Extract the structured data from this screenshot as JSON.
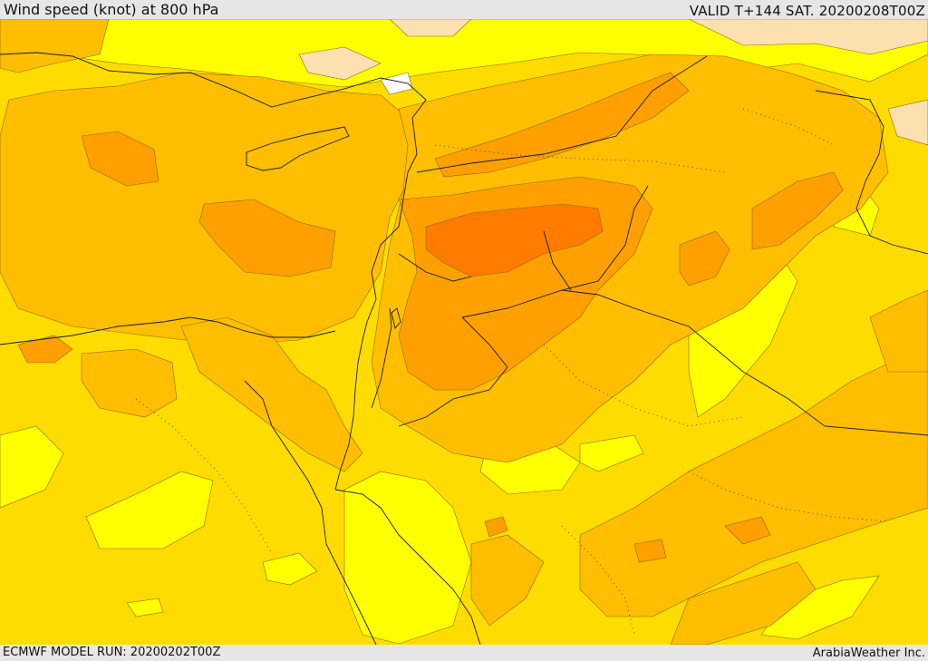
{
  "header": {
    "title": "Wind speed (knot) at 800 hPa",
    "valid": "VALID T+144 SAT. 20200208T00Z"
  },
  "footer": {
    "model_run": "ECMWF MODEL RUN: 20200202T00Z",
    "credit": "ArabiaWeather Inc."
  },
  "map": {
    "variable": "wind speed",
    "level": "800 hPa",
    "units": "knot",
    "colors": {
      "very_light": "#ffffff",
      "light": "#fde0b0",
      "yellow": "#ffff00",
      "gold": "#ffdc00",
      "amber": "#ffbe00",
      "orange": "#ffa000",
      "deep_orange": "#ff7c00",
      "border": "#1a1a1a"
    }
  }
}
